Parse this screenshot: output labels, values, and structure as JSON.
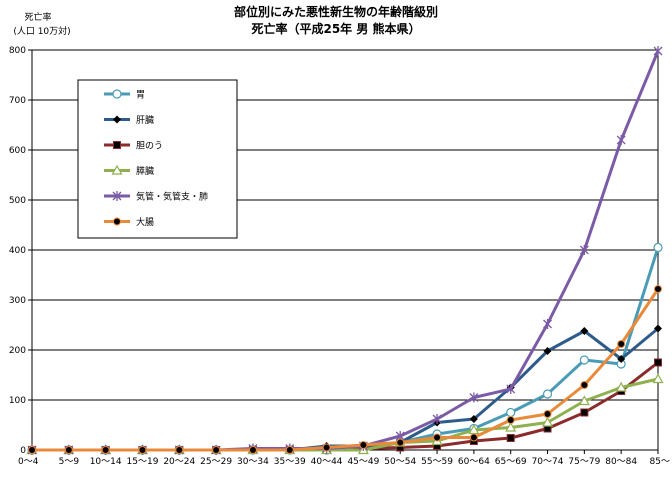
{
  "chart_data": {
    "type": "line",
    "title": "部位別にみた悪性新生物の年齢階級別",
    "subtitle": "死亡率（平成25年 男 熊本県）",
    "ylabel": "死亡率",
    "ylabel_unit": "(人口 10万対)",
    "xlabel": "",
    "ylim": [
      0,
      800
    ],
    "yticks": [
      0,
      100,
      200,
      300,
      400,
      500,
      600,
      700,
      800
    ],
    "grid": true,
    "legend_position": "top-left",
    "categories": [
      "0〜4",
      "5〜9",
      "10〜14",
      "15〜19",
      "20〜24",
      "25〜29",
      "30〜34",
      "35〜39",
      "40〜44",
      "45〜49",
      "50〜54",
      "55〜59",
      "60〜64",
      "65〜69",
      "70〜74",
      "75〜79",
      "80〜84",
      "85〜"
    ],
    "series": [
      {
        "name": "胃",
        "color": "#4a9bb5",
        "marker": "circle-open",
        "values": [
          0,
          0,
          0,
          0,
          0,
          0,
          0,
          0,
          0,
          5,
          15,
          32,
          43,
          75,
          112,
          180,
          172,
          405
        ]
      },
      {
        "name": "肝臓",
        "color": "#2e5c8a",
        "marker": "diamond",
        "values": [
          0,
          0,
          0,
          0,
          0,
          0,
          0,
          0,
          8,
          8,
          15,
          55,
          62,
          125,
          198,
          238,
          182,
          243
        ]
      },
      {
        "name": "胆のう",
        "color": "#8b2b2b",
        "marker": "square",
        "values": [
          0,
          0,
          0,
          0,
          0,
          0,
          0,
          0,
          0,
          3,
          5,
          8,
          18,
          24,
          43,
          75,
          118,
          175
        ]
      },
      {
        "name": "膵臓",
        "color": "#8fb04e",
        "marker": "triangle-open",
        "values": [
          0,
          0,
          0,
          0,
          0,
          0,
          0,
          0,
          0,
          0,
          15,
          18,
          40,
          45,
          55,
          98,
          125,
          142
        ]
      },
      {
        "name": "気管・気管支・肺",
        "color": "#7b5aa6",
        "marker": "star",
        "values": [
          0,
          0,
          0,
          0,
          0,
          0,
          3,
          3,
          3,
          8,
          28,
          62,
          105,
          122,
          252,
          400,
          620,
          798
        ]
      },
      {
        "name": "大腸",
        "color": "#e88a3a",
        "marker": "circle-filled",
        "values": [
          0,
          0,
          0,
          0,
          0,
          0,
          0,
          0,
          5,
          10,
          15,
          25,
          25,
          60,
          72,
          130,
          212,
          322
        ]
      }
    ]
  }
}
